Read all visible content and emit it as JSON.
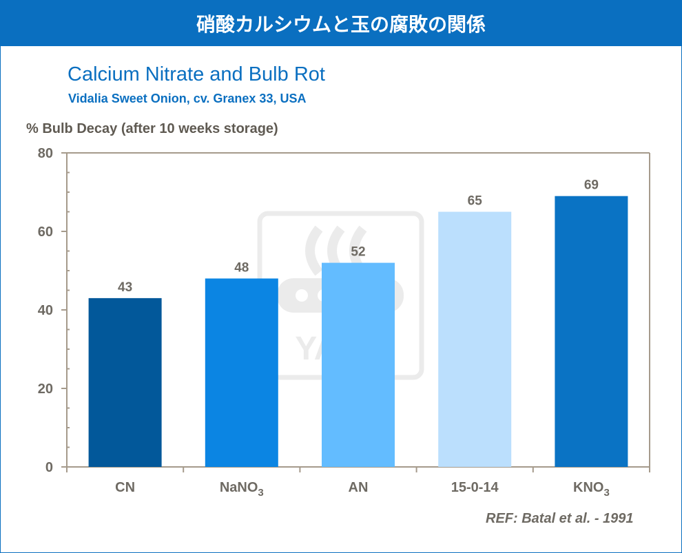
{
  "header": {
    "title": "硝酸カルシウムと玉の腐敗の関係"
  },
  "reference": "REF: Batal et al. - 1991",
  "colors": {
    "header_bg": "#0a6fc0",
    "title": "#0a6fc0",
    "axis_text": "#6e6a63",
    "bars": [
      "#02589a",
      "#0b85e3",
      "#63bcff",
      "#bbdffd",
      "#0a73c4"
    ]
  },
  "watermark": {
    "icon": "yara-logo"
  },
  "chart_data": {
    "type": "bar",
    "title": "Calcium Nitrate and Bulb Rot",
    "subtitle": "Vidalia  Sweet Onion, cv. Granex 33, USA",
    "ylabel": "%  Bulb Decay (after 10 weeks storage)",
    "xlabel": "",
    "categories": [
      {
        "base": "CN",
        "sub": ""
      },
      {
        "base": "NaNO",
        "sub": "3"
      },
      {
        "base": "AN",
        "sub": ""
      },
      {
        "base": "15-0-14",
        "sub": ""
      },
      {
        "base": "KNO",
        "sub": "3"
      }
    ],
    "values": [
      43,
      48,
      52,
      65,
      69
    ],
    "ylim": [
      0,
      80
    ],
    "yticks": [
      0,
      20,
      40,
      60,
      80
    ],
    "data_labels": true,
    "grid": false,
    "legend": "none"
  }
}
